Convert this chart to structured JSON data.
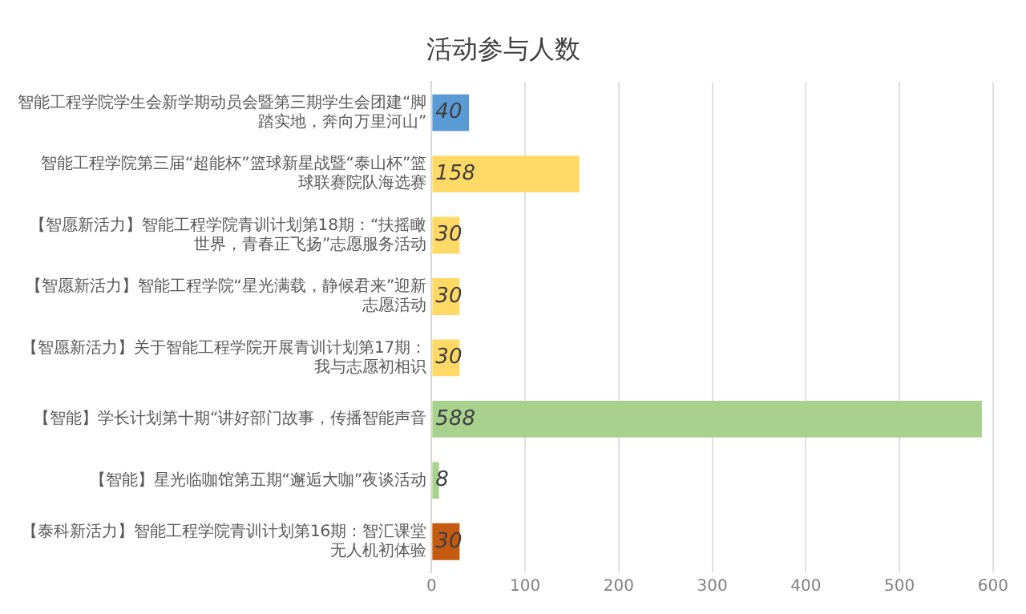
{
  "chart_data": {
    "type": "bar",
    "orientation": "horizontal",
    "title": "活动参与人数",
    "categories": [
      "智能工程学院学生会新学期动员会暨第三期学生会团建“脚踏实地，奔向万里河山”",
      "智能工程学院第三届“超能杯”篮球新星战暨“泰山杯”篮球联赛院队海选赛",
      "【智愿新活力】智能工程学院青训计划第18期：“扶摇瞰世界，青春正飞扬”志愿服务活动",
      "【智愿新活力】智能工程学院“星光满载，静候君来”迎新志愿活动",
      "【智愿新活力】关于智能工程学院开展青训计划第17期：我与志愿初相识",
      "【智能】学长计划第十期“讲好部门故事，传播智能声音",
      "【智能】星光临咖馆第五期“邂逅大咖”夜谈活动",
      "【泰科新活力】智能工程学院青训计划第16期：智汇课堂无人机初体验"
    ],
    "values": [
      40,
      158,
      30,
      30,
      30,
      588,
      8,
      30
    ],
    "colors": [
      "#5b9bd5",
      "#ffd966",
      "#ffd966",
      "#ffd966",
      "#ffd966",
      "#a9d18e",
      "#a9d18e",
      "#c55a11"
    ],
    "xlim": [
      0,
      600
    ],
    "xticks": [
      0,
      100,
      200,
      300,
      400,
      500,
      600
    ],
    "grid": "x",
    "data_labels": true,
    "legend": false
  }
}
